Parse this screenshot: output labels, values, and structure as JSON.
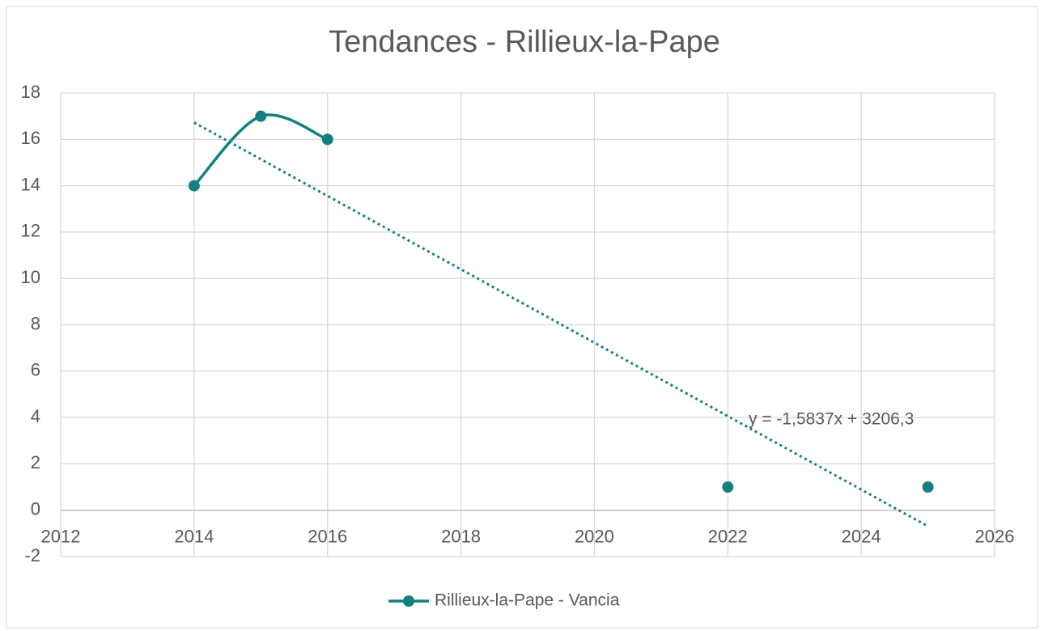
{
  "chart_data": {
    "type": "scatter",
    "title": "Tendances - Rillieux-la-Pape",
    "x": [
      2014,
      2015,
      2016,
      2017,
      2018,
      2019,
      2020,
      2021,
      2022,
      2023,
      2024,
      2025
    ],
    "series": [
      {
        "name": "Rillieux-la-Pape - Vancia",
        "color": "#13807f",
        "values": [
          14,
          17,
          16,
          null,
          null,
          null,
          null,
          null,
          1,
          null,
          null,
          1
        ]
      }
    ],
    "smooth": true,
    "trendline": {
      "slope": -1.5837,
      "intercept": 3206.3,
      "label": "y = -1,5837x + 3206,3"
    },
    "xlim": [
      2012,
      2026
    ],
    "xticks": [
      2012,
      2014,
      2016,
      2018,
      2020,
      2022,
      2024,
      2026
    ],
    "ylim": [
      -2,
      18
    ],
    "yticks": [
      -2,
      0,
      2,
      4,
      6,
      8,
      10,
      12,
      14,
      16,
      18
    ],
    "grid": true,
    "legend": "bottom"
  }
}
